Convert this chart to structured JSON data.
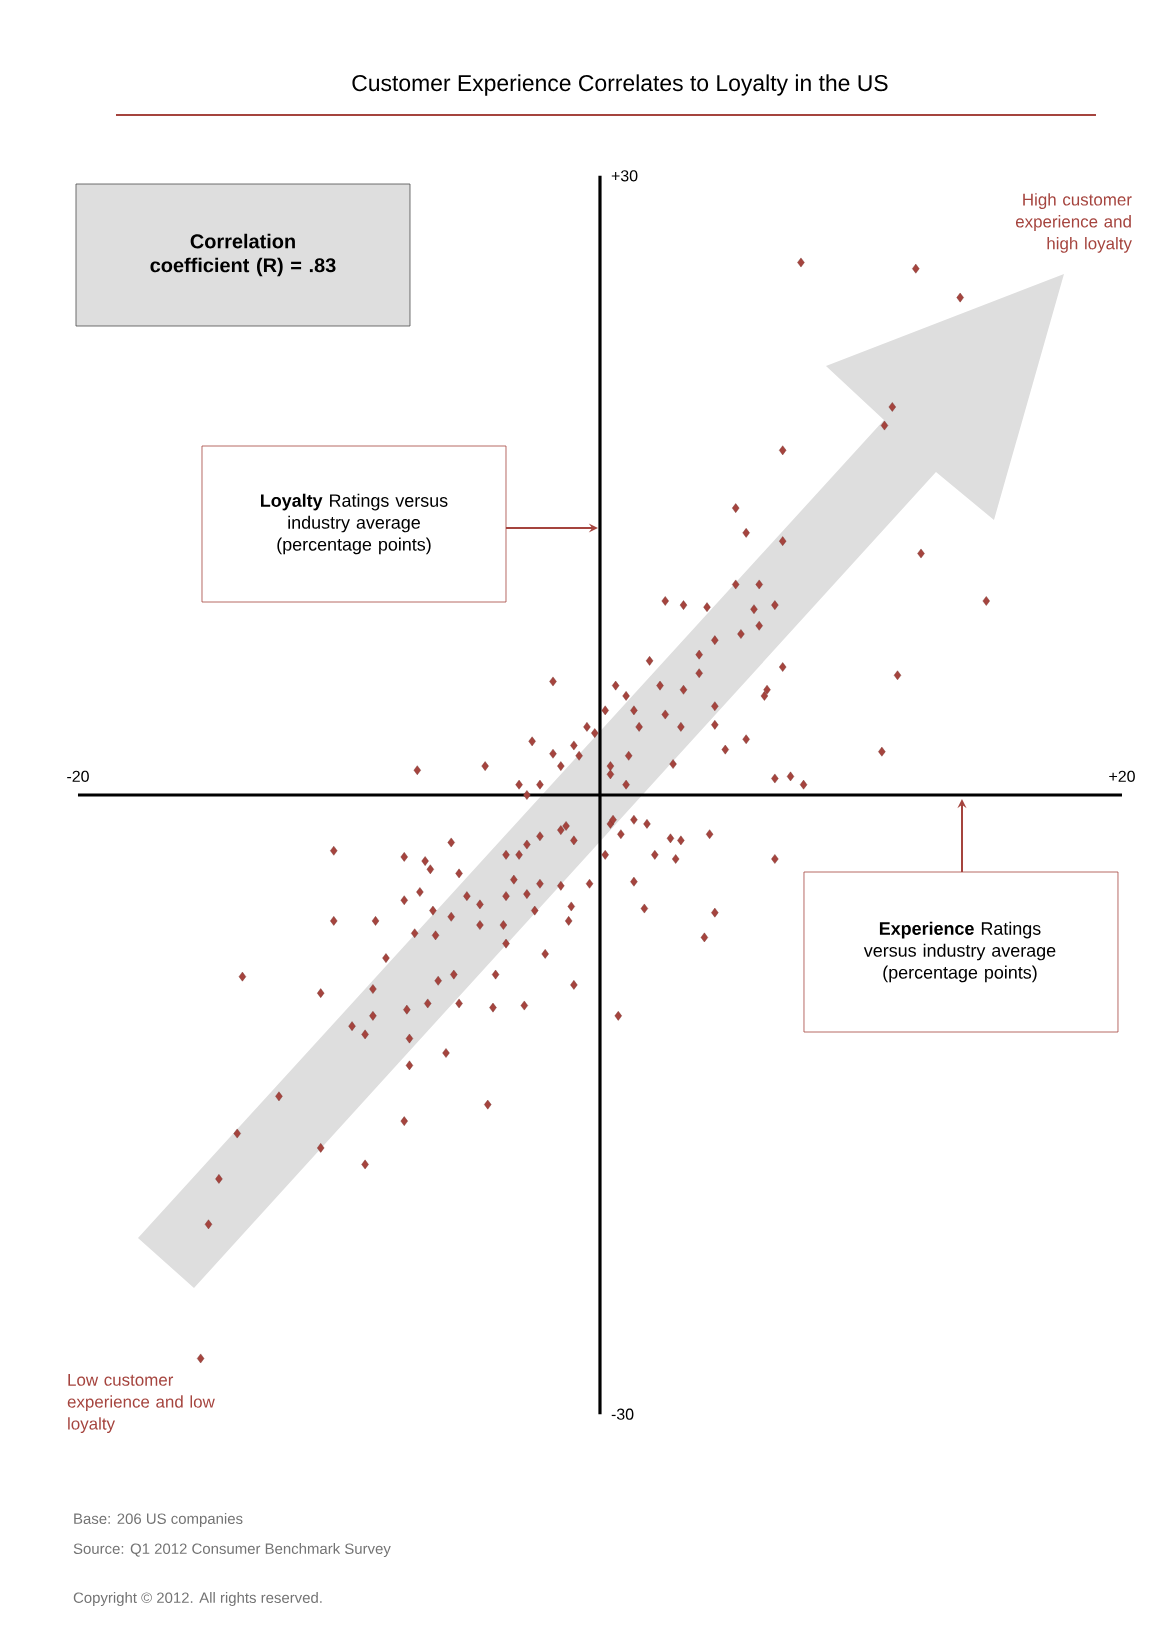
{
  "chart_data": {
    "type": "scatter",
    "title": "Customer Experience Correlates to Loyalty in the US",
    "xlabel": "**Experience** Ratings versus industry average (percentage points)",
    "ylabel": "**Loyalty** Ratings versus industry average (percentage points)",
    "xlim": [
      -20,
      20
    ],
    "ylim": [
      -30,
      30
    ],
    "xticks": [
      {
        "value": -20,
        "label": "-20"
      },
      {
        "value": 20,
        "label": "+20"
      }
    ],
    "yticks": [
      {
        "value": 30,
        "label": "+30"
      },
      {
        "value": -30,
        "label": "-30"
      }
    ],
    "marker": "diamond",
    "grid": false,
    "annotations": [
      "Correlation coefficient (R) = .83",
      "High customer experience and high loyalty",
      "Low customer experience and low loyalty",
      "Base: 206 US companies",
      "Source: Q1 2012 Consumer Benchmark Survey",
      "Copyright © 2012. All rights reserved."
    ],
    "series": [
      {
        "color": "#a5443e",
        "x": [
          7.7,
          12.1,
          13.8,
          11.2,
          10.9,
          7.0,
          5.2,
          5.6,
          7.0,
          12.3,
          14.8,
          5.2,
          6.1,
          2.5,
          3.2,
          4.1,
          5.9,
          6.7,
          5.4,
          6.1,
          4.4,
          3.8,
          1.9,
          7.0,
          11.4,
          -1.8,
          0.6,
          2.3,
          3.2,
          3.8,
          6.4,
          6.3,
          4.4,
          4.4,
          0.2,
          1.3,
          -0.5,
          1.5,
          3.1,
          2.5,
          -2.6,
          4.8,
          5.6,
          10.8,
          -1.8,
          -1.0,
          0.4,
          1.1,
          2.8,
          -7.0,
          -4.4,
          6.7,
          7.3,
          7.8,
          -3.1,
          -2.3,
          1.0,
          -10.2,
          -7.5,
          -6.7,
          -5.7,
          -6.5,
          -6.9,
          -5.4,
          -7.5,
          -5.1,
          -4.6,
          -6.4,
          -5.7,
          -4.6,
          -3.7,
          -3.6,
          -2.8,
          -2.3,
          -1.5,
          -1.0,
          -3.3,
          -2.8,
          -2.3,
          -3.6,
          -2.5,
          -1.5,
          -1.1,
          -1.2,
          -0.4,
          0.2,
          0.4,
          1.3,
          1.8,
          0.8,
          2.7,
          2.9,
          2.1,
          4.2,
          6.7,
          1.3,
          1.7,
          4.4,
          4.0,
          -10.2,
          -8.6,
          -7.1,
          -6.3,
          -3.6,
          -2.1,
          -8.2,
          -13.7,
          -10.7,
          -8.7,
          -6.2,
          -5.6,
          -4.0,
          -1.0,
          -9.5,
          -9.0,
          -8.7,
          -7.4,
          -6.6,
          -5.4,
          -4.1,
          -2.9,
          0.7,
          -7.3,
          -5.9,
          -7.3,
          -12.3,
          -4.3,
          -7.5,
          -13.9,
          -10.7,
          -14.6,
          -9.0,
          -15.0,
          -15.3,
          -0.2,
          1.0,
          0.4,
          -0.8,
          -1.5,
          -2.8,
          0.5,
          3.1,
          -1.3,
          -3.1
        ],
        "values": [
          25.8,
          25.5,
          24.1,
          18.8,
          17.9,
          16.7,
          13.9,
          12.7,
          12.3,
          11.7,
          9.4,
          10.2,
          10.2,
          9.4,
          9.2,
          9.1,
          9.0,
          9.2,
          7.8,
          8.2,
          7.5,
          6.8,
          6.5,
          6.2,
          5.8,
          5.5,
          5.3,
          5.3,
          5.1,
          5.9,
          5.1,
          4.8,
          4.3,
          3.4,
          4.1,
          4.1,
          3.3,
          3.3,
          3.3,
          3.9,
          2.6,
          2.2,
          2.7,
          2.1,
          2.0,
          2.4,
          1.4,
          1.9,
          1.5,
          1.2,
          1.4,
          0.8,
          0.9,
          0.5,
          0.5,
          0.5,
          0.5,
          -2.7,
          -3.0,
          -3.2,
          -2.3,
          -3.6,
          -4.7,
          -3.8,
          -5.1,
          -4.9,
          -5.3,
          -5.6,
          -5.9,
          -6.3,
          -6.3,
          -2.9,
          -2.4,
          -2.0,
          -1.7,
          -2.2,
          -4.1,
          -4.8,
          -4.3,
          -4.9,
          -5.6,
          -4.4,
          -5.4,
          -6.1,
          -4.3,
          -2.9,
          -1.4,
          -1.2,
          -1.4,
          -1.9,
          -2.1,
          -3.1,
          -2.9,
          -1.9,
          -3.1,
          -4.2,
          -5.5,
          -5.7,
          -6.9,
          -6.1,
          -6.1,
          -6.7,
          -6.8,
          -7.2,
          -7.7,
          -7.9,
          -8.8,
          -9.6,
          -9.4,
          -9.0,
          -8.7,
          -8.7,
          -9.2,
          -11.2,
          -11.6,
          -10.7,
          -10.4,
          -10.1,
          -10.1,
          -10.3,
          -10.2,
          -10.7,
          -11.8,
          -12.5,
          -13.1,
          -14.6,
          -15.0,
          -15.8,
          -16.4,
          -17.1,
          -18.6,
          -17.9,
          -20.8,
          -27.3,
          3.0,
          4.8,
          1.0,
          1.9,
          1.4,
          0.0,
          -1.2,
          -2.2,
          -1.5,
          -2.9
        ]
      }
    ]
  }
}
